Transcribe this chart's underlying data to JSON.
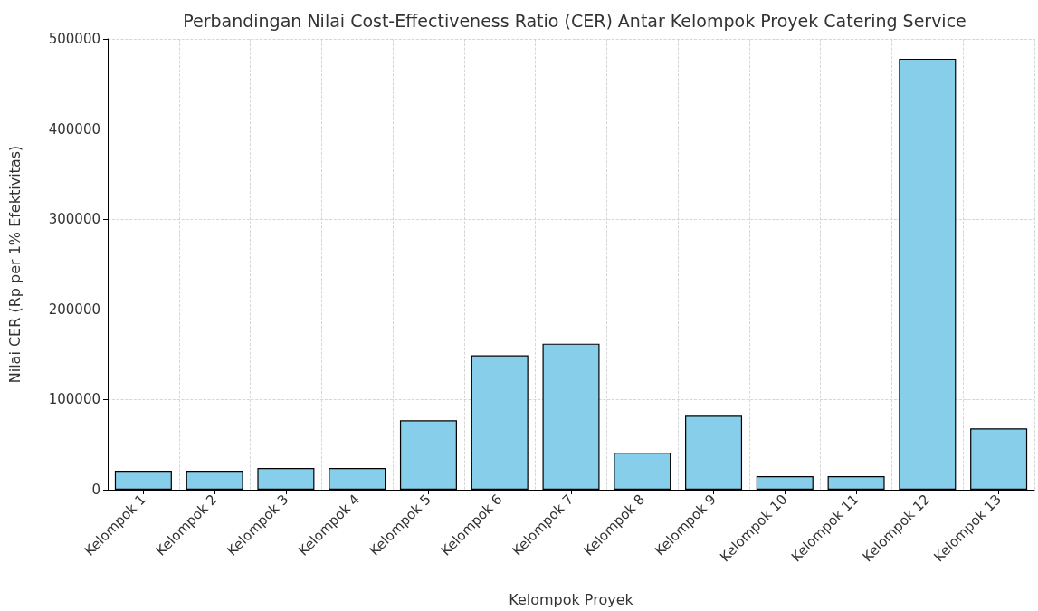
{
  "chart_data": {
    "type": "bar",
    "title": "Perbandingan Nilai Cost-Effectiveness Ratio (CER) Antar Kelompok Proyek Catering Service",
    "xlabel": "Kelompok Proyek",
    "ylabel": "Nilai CER (Rp per 1% Efektivitas)",
    "categories": [
      "Kelompok 1",
      "Kelompok 2",
      "Kelompok 3",
      "Kelompok 4",
      "Kelompok 5",
      "Kelompok 6",
      "Kelompok 7",
      "Kelompok 8",
      "Kelompok 9",
      "Kelompok 10",
      "Kelompok 11",
      "Kelompok 12",
      "Kelompok 13"
    ],
    "values": [
      21000,
      21000,
      24000,
      24000,
      77000,
      149000,
      162000,
      41000,
      82000,
      15000,
      15000,
      478000,
      68000
    ],
    "color": "#87ceeb",
    "ylim": [
      0,
      500000
    ],
    "yticks": [
      0,
      100000,
      200000,
      300000,
      400000,
      500000
    ],
    "grid": true
  }
}
